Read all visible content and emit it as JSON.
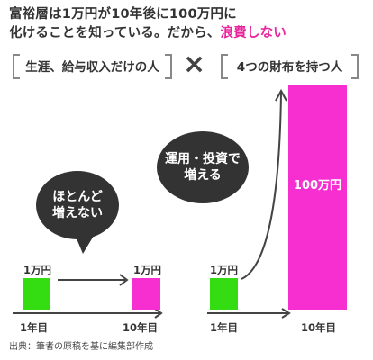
{
  "headline": {
    "line1": "富裕層は1万円が10年後に100万円に",
    "line2_prefix": "化けることを知っている。だから、",
    "line2_accent": "浪費しない"
  },
  "left_panel": {
    "title": "生涯、給与収入だけの人",
    "bubble_line1": "ほとんど",
    "bubble_line2": "増えない",
    "start_value": "1万円",
    "end_value": "1万円",
    "x_start": "1年目",
    "x_end": "10年目"
  },
  "cross_symbol": "×",
  "right_panel": {
    "title": "4つの財布を持つ人",
    "bubble_line1": "運用・投資で",
    "bubble_line2": "増える",
    "start_value": "1万円",
    "end_value": "100万円",
    "x_start": "1年目",
    "x_end": "10年目"
  },
  "source": "出典：筆者の原稿を基に編集部作成",
  "colors": {
    "green": "#33dd11",
    "pink": "#f72fd1",
    "accent": "#e8249c",
    "bubble": "#333333"
  }
}
